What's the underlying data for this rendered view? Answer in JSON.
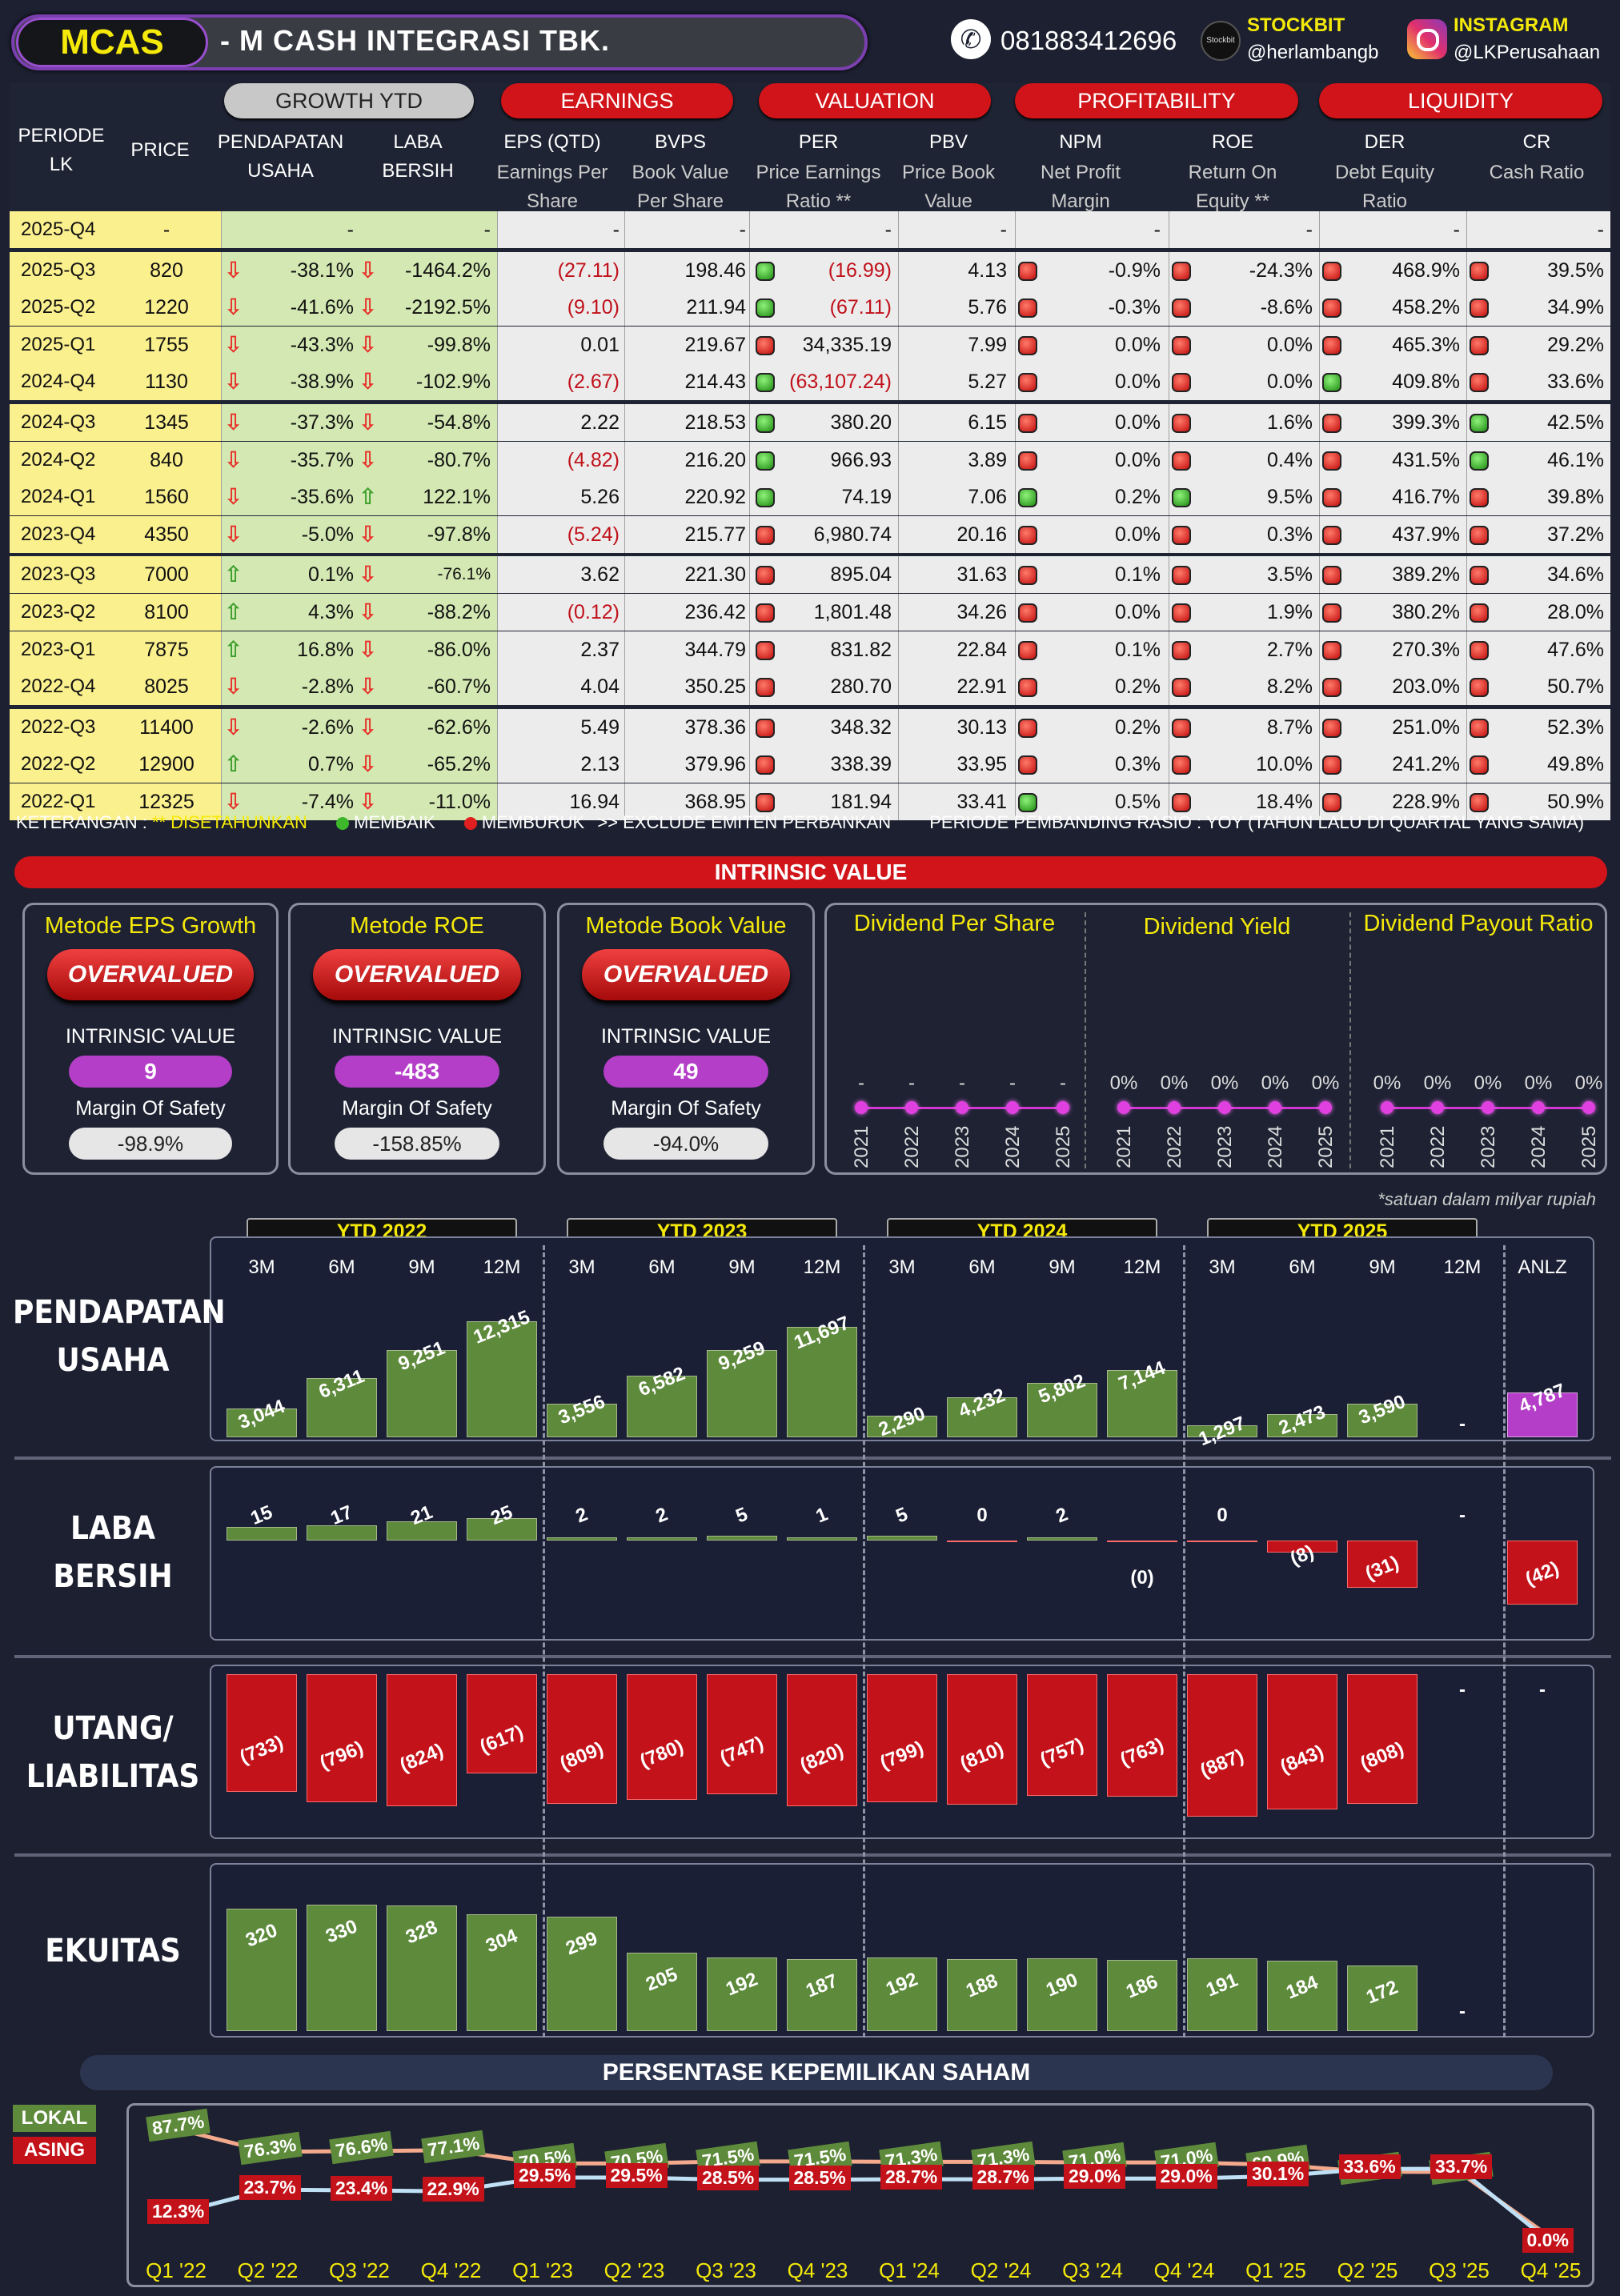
{
  "header": {
    "ticker": "MCAS",
    "company": "-  M CASH INTEGRASI TBK.",
    "phone": "081883412696",
    "stockbit_label": "STOCKBIT",
    "stockbit_handle": "@herlambangb",
    "instagram_label": "INSTAGRAM",
    "instagram_handle": "@LKPerusahaan"
  },
  "table": {
    "groups": {
      "growth": "GROWTH YTD",
      "earnings": "EARNINGS",
      "valuation": "VALUATION",
      "profitability": "PROFITABILITY",
      "liquidity": "LIQUIDITY"
    },
    "cols": {
      "periode": "PERIODE LK",
      "price": "PRICE",
      "pendapatan": "PENDAPATAN USAHA",
      "laba": "LABA BERSIH",
      "eps": "EPS (QTD)",
      "eps_sub": "Earnings Per Share",
      "bvps": "BVPS",
      "bvps_sub": "Book Value Per Share",
      "per": "PER",
      "per_sub": "Price Earnings Ratio **",
      "pbv": "PBV",
      "pbv_sub": "Price Book Value",
      "npm": "NPM",
      "npm_sub": "Net Profit Margin",
      "roe": "ROE",
      "roe_sub": "Return On Equity **",
      "der": "DER",
      "der_sub": "Debt Equity Ratio",
      "cr": "CR",
      "cr_sub": "Cash Ratio"
    },
    "rows": [
      {
        "p": "2025-Q4",
        "price": "-",
        "rev": "-",
        "rev_a": "",
        "np": "-",
        "np_a": "",
        "eps": "-",
        "bvps": "-",
        "per": "-",
        "per_d": "",
        "pbv": "-",
        "npm": "-",
        "npm_d": "",
        "roe": "-",
        "roe_d": "",
        "der": "-",
        "der_d": "",
        "cr": "-",
        "cr_d": "",
        "eps_red": false,
        "per_red": false
      },
      {
        "p": "2025-Q3",
        "price": "820",
        "rev": "-38.1%",
        "rev_a": "dn",
        "np": "-1464.2%",
        "np_a": "dn",
        "eps": "(27.11)",
        "bvps": "198.46",
        "per": "(16.99)",
        "per_d": "g",
        "pbv": "4.13",
        "npm": "-0.9%",
        "npm_d": "r",
        "roe": "-24.3%",
        "roe_d": "r",
        "der": "468.9%",
        "der_d": "r",
        "cr": "39.5%",
        "cr_d": "r",
        "eps_red": true,
        "per_red": true
      },
      {
        "p": "2025-Q2",
        "price": "1220",
        "rev": "-41.6%",
        "rev_a": "dn",
        "np": "-2192.5%",
        "np_a": "dn",
        "eps": "(9.10)",
        "bvps": "211.94",
        "per": "(67.11)",
        "per_d": "g",
        "pbv": "5.76",
        "npm": "-0.3%",
        "npm_d": "r",
        "roe": "-8.6%",
        "roe_d": "r",
        "der": "458.2%",
        "der_d": "r",
        "cr": "34.9%",
        "cr_d": "r",
        "eps_red": true,
        "per_red": true
      },
      {
        "p": "2025-Q1",
        "price": "1755",
        "rev": "-43.3%",
        "rev_a": "dn",
        "np": "-99.8%",
        "np_a": "dn",
        "eps": "0.01",
        "bvps": "219.67",
        "per": "34,335.19",
        "per_d": "r",
        "pbv": "7.99",
        "npm": "0.0%",
        "npm_d": "r",
        "roe": "0.0%",
        "roe_d": "r",
        "der": "465.3%",
        "der_d": "r",
        "cr": "29.2%",
        "cr_d": "r",
        "eps_red": false,
        "per_red": false
      },
      {
        "p": "2024-Q4",
        "price": "1130",
        "rev": "-38.9%",
        "rev_a": "dn",
        "np": "-102.9%",
        "np_a": "dn",
        "eps": "(2.67)",
        "bvps": "214.43",
        "per": "(63,107.24)",
        "per_d": "g",
        "pbv": "5.27",
        "npm": "0.0%",
        "npm_d": "r",
        "roe": "0.0%",
        "roe_d": "r",
        "der": "409.8%",
        "der_d": "g",
        "cr": "33.6%",
        "cr_d": "r",
        "eps_red": true,
        "per_red": true
      },
      {
        "p": "2024-Q3",
        "price": "1345",
        "rev": "-37.3%",
        "rev_a": "dn",
        "np": "-54.8%",
        "np_a": "dn",
        "eps": "2.22",
        "bvps": "218.53",
        "per": "380.20",
        "per_d": "g",
        "pbv": "6.15",
        "npm": "0.0%",
        "npm_d": "r",
        "roe": "1.6%",
        "roe_d": "r",
        "der": "399.3%",
        "der_d": "r",
        "cr": "42.5%",
        "cr_d": "g",
        "eps_red": false,
        "per_red": false
      },
      {
        "p": "2024-Q2",
        "price": "840",
        "rev": "-35.7%",
        "rev_a": "dn",
        "np": "-80.7%",
        "np_a": "dn",
        "eps": "(4.82)",
        "bvps": "216.20",
        "per": "966.93",
        "per_d": "g",
        "pbv": "3.89",
        "npm": "0.0%",
        "npm_d": "r",
        "roe": "0.4%",
        "roe_d": "r",
        "der": "431.5%",
        "der_d": "r",
        "cr": "46.1%",
        "cr_d": "g",
        "eps_red": true,
        "per_red": false
      },
      {
        "p": "2024-Q1",
        "price": "1560",
        "rev": "-35.6%",
        "rev_a": "dn",
        "np": "122.1%",
        "np_a": "up",
        "eps": "5.26",
        "bvps": "220.92",
        "per": "74.19",
        "per_d": "g",
        "pbv": "7.06",
        "npm": "0.2%",
        "npm_d": "g",
        "roe": "9.5%",
        "roe_d": "g",
        "der": "416.7%",
        "der_d": "r",
        "cr": "39.8%",
        "cr_d": "r",
        "eps_red": false,
        "per_red": false
      },
      {
        "p": "2023-Q4",
        "price": "4350",
        "rev": "-5.0%",
        "rev_a": "dn",
        "np": "-97.8%",
        "np_a": "dn",
        "eps": "(5.24)",
        "bvps": "215.77",
        "per": "6,980.74",
        "per_d": "r",
        "pbv": "20.16",
        "npm": "0.0%",
        "npm_d": "r",
        "roe": "0.3%",
        "roe_d": "r",
        "der": "437.9%",
        "der_d": "r",
        "cr": "37.2%",
        "cr_d": "r",
        "eps_red": true,
        "per_red": false
      },
      {
        "p": "2023-Q3",
        "price": "7000",
        "rev": "0.1%",
        "rev_a": "up",
        "np": "-76.1%",
        "np_a": "dn",
        "eps": "3.62",
        "bvps": "221.30",
        "per": "895.04",
        "per_d": "r",
        "pbv": "31.63",
        "npm": "0.1%",
        "npm_d": "r",
        "roe": "3.5%",
        "roe_d": "r",
        "der": "389.2%",
        "der_d": "r",
        "cr": "34.6%",
        "cr_d": "r",
        "eps_red": false,
        "per_red": false
      },
      {
        "p": "2023-Q2",
        "price": "8100",
        "rev": "4.3%",
        "rev_a": "up",
        "np": "-88.2%",
        "np_a": "dn",
        "eps": "(0.12)",
        "bvps": "236.42",
        "per": "1,801.48",
        "per_d": "r",
        "pbv": "34.26",
        "npm": "0.0%",
        "npm_d": "r",
        "roe": "1.9%",
        "roe_d": "r",
        "der": "380.2%",
        "der_d": "r",
        "cr": "28.0%",
        "cr_d": "r",
        "eps_red": true,
        "per_red": false
      },
      {
        "p": "2023-Q1",
        "price": "7875",
        "rev": "16.8%",
        "rev_a": "up",
        "np": "-86.0%",
        "np_a": "dn",
        "eps": "2.37",
        "bvps": "344.79",
        "per": "831.82",
        "per_d": "r",
        "pbv": "22.84",
        "npm": "0.1%",
        "npm_d": "r",
        "roe": "2.7%",
        "roe_d": "r",
        "der": "270.3%",
        "der_d": "r",
        "cr": "47.6%",
        "cr_d": "r",
        "eps_red": false,
        "per_red": false
      },
      {
        "p": "2022-Q4",
        "price": "8025",
        "rev": "-2.8%",
        "rev_a": "dn",
        "np": "-60.7%",
        "np_a": "dn",
        "eps": "4.04",
        "bvps": "350.25",
        "per": "280.70",
        "per_d": "r",
        "pbv": "22.91",
        "npm": "0.2%",
        "npm_d": "r",
        "roe": "8.2%",
        "roe_d": "r",
        "der": "203.0%",
        "der_d": "r",
        "cr": "50.7%",
        "cr_d": "r",
        "eps_red": false,
        "per_red": false
      },
      {
        "p": "2022-Q3",
        "price": "11400",
        "rev": "-2.6%",
        "rev_a": "dn",
        "np": "-62.6%",
        "np_a": "dn",
        "eps": "5.49",
        "bvps": "378.36",
        "per": "348.32",
        "per_d": "r",
        "pbv": "30.13",
        "npm": "0.2%",
        "npm_d": "r",
        "roe": "8.7%",
        "roe_d": "r",
        "der": "251.0%",
        "der_d": "r",
        "cr": "52.3%",
        "cr_d": "r",
        "eps_red": false,
        "per_red": false
      },
      {
        "p": "2022-Q2",
        "price": "12900",
        "rev": "0.7%",
        "rev_a": "up",
        "np": "-65.2%",
        "np_a": "dn",
        "eps": "2.13",
        "bvps": "379.96",
        "per": "338.39",
        "per_d": "r",
        "pbv": "33.95",
        "npm": "0.3%",
        "npm_d": "r",
        "roe": "10.0%",
        "roe_d": "r",
        "der": "241.2%",
        "der_d": "r",
        "cr": "49.8%",
        "cr_d": "r",
        "eps_red": false,
        "per_red": false
      },
      {
        "p": "2022-Q1",
        "price": "12325",
        "rev": "-7.4%",
        "rev_a": "dn",
        "np": "-11.0%",
        "np_a": "dn",
        "eps": "16.94",
        "bvps": "368.95",
        "per": "181.94",
        "per_d": "r",
        "pbv": "33.41",
        "npm": "0.5%",
        "npm_d": "g",
        "roe": "18.4%",
        "roe_d": "r",
        "der": "228.9%",
        "der_d": "r",
        "cr": "50.9%",
        "cr_d": "r",
        "eps_red": false,
        "per_red": false
      }
    ],
    "legend": {
      "ket": "KETERANGAN :",
      "ann": "** DISETAHUNKAN",
      "membaik": "MEMBAIK",
      "memburuk": "MEMBURUK",
      "exclude": ">> EXCLUDE EMITEN PERBANKAN",
      "periode": "PERIODE PEMBANDING RASIO : YOY (TAHUN LALU DI QUARTAL YANG SAMA)"
    }
  },
  "intrinsic": {
    "title": "INTRINSIC VALUE",
    "cards": [
      {
        "title": "Metode EPS Growth",
        "status": "OVERVALUED",
        "iv_label": "INTRINSIC VALUE",
        "iv": "9",
        "mos_label": "Margin Of Safety",
        "mos": "-98.9%"
      },
      {
        "title": "Metode ROE",
        "status": "OVERVALUED",
        "iv_label": "INTRINSIC VALUE",
        "iv": "-483",
        "mos_label": "Margin Of Safety",
        "mos": "-158.85%"
      },
      {
        "title": "Metode Book Value",
        "status": "OVERVALUED",
        "iv_label": "INTRINSIC VALUE",
        "iv": "49",
        "mos_label": "Margin Of Safety",
        "mos": "-94.0%"
      }
    ],
    "dividend": {
      "dps_title": "Dividend Per Share",
      "dy_title": "Dividend Yield",
      "dpr_title": "Dividend Payout Ratio",
      "years": [
        "2021",
        "2022",
        "2023",
        "2024",
        "2025"
      ],
      "dps": [
        "-",
        "-",
        "-",
        "-",
        "-"
      ],
      "dy": [
        "0%",
        "0%",
        "0%",
        "0%",
        "0%"
      ],
      "dpr": [
        "0%",
        "0%",
        "0%",
        "0%",
        "0%"
      ]
    }
  },
  "note": "*satuan dalam milyar rupiah",
  "bars": {
    "ytd": [
      "YTD 2022",
      "YTD 2023",
      "YTD 2024",
      "YTD 2025"
    ],
    "periods": [
      "3M",
      "6M",
      "9M",
      "12M",
      "3M",
      "6M",
      "9M",
      "12M",
      "3M",
      "6M",
      "9M",
      "12M",
      "3M",
      "6M",
      "9M",
      "12M",
      "ANLZ"
    ],
    "pendapatan": {
      "label": "PENDAPATAN USAHA",
      "values": [
        3044,
        6311,
        9251,
        12315,
        3556,
        6582,
        9259,
        11697,
        2290,
        4232,
        5802,
        7144,
        1297,
        2473,
        3590,
        null,
        4787
      ],
      "labels": [
        "3,044",
        "6,311",
        "9,251",
        "12,315",
        "3,556",
        "6,582",
        "9,259",
        "11,697",
        "2,290",
        "4,232",
        "5,802",
        "7,144",
        "1,297",
        "2,473",
        "3,590",
        "-",
        "4,787"
      ]
    },
    "laba": {
      "label": "LABA BERSIH",
      "values": [
        15,
        17,
        21,
        25,
        2,
        2,
        5,
        1,
        5,
        0,
        2,
        0,
        0,
        -8,
        -31,
        null,
        -42
      ],
      "labels": [
        "15",
        "17",
        "21",
        "25",
        "2",
        "2",
        "5",
        "1",
        "5",
        "0",
        "2",
        "(0)",
        "0",
        "(8)",
        "(31)",
        "-",
        "(42)"
      ]
    },
    "utang": {
      "label": "UTANG/ LIABILITAS",
      "values": [
        -733,
        -796,
        -824,
        -617,
        -809,
        -780,
        -747,
        -820,
        -799,
        -810,
        -757,
        -763,
        -887,
        -843,
        -808,
        null,
        null
      ],
      "labels": [
        "(733)",
        "(796)",
        "(824)",
        "(617)",
        "(809)",
        "(780)",
        "(747)",
        "(820)",
        "(799)",
        "(810)",
        "(757)",
        "(763)",
        "(887)",
        "(843)",
        "(808)",
        "-",
        "-"
      ]
    },
    "ekuitas": {
      "label": "EKUITAS",
      "values": [
        320,
        330,
        328,
        304,
        299,
        205,
        192,
        187,
        192,
        188,
        190,
        186,
        191,
        184,
        172,
        null,
        null
      ],
      "labels": [
        "320",
        "330",
        "328",
        "304",
        "299",
        "205",
        "192",
        "187",
        "192",
        "188",
        "190",
        "186",
        "191",
        "184",
        "172",
        "-",
        ""
      ]
    }
  },
  "ownership": {
    "title": "PERSENTASE KEPEMILIKAN SAHAM",
    "lokal_label": "LOKAL",
    "asing_label": "ASING",
    "quarters": [
      "Q1 '22",
      "Q2 '22",
      "Q3 '22",
      "Q4 '22",
      "Q1 '23",
      "Q2 '23",
      "Q3 '23",
      "Q4 '23",
      "Q1 '24",
      "Q2 '24",
      "Q3 '24",
      "Q4 '24",
      "Q1 '25",
      "Q2 '25",
      "Q3 '25",
      "Q4 '25"
    ],
    "lokal": [
      87.7,
      76.3,
      76.6,
      77.1,
      70.5,
      70.5,
      71.5,
      71.5,
      71.3,
      71.3,
      71.0,
      71.0,
      69.9,
      66.4,
      66.3,
      0
    ],
    "asing": [
      12.3,
      23.7,
      23.4,
      22.9,
      29.5,
      29.5,
      28.5,
      28.5,
      28.7,
      28.7,
      29.0,
      29.0,
      30.1,
      33.6,
      33.7,
      0.0
    ],
    "lokal_labels": [
      "87.7%",
      "76.3%",
      "76.6%",
      "77.1%",
      "70.5%",
      "70.5%",
      "71.5%",
      "71.5%",
      "71.3%",
      "71.3%",
      "71.0%",
      "71.0%",
      "69.9%",
      "66.4%",
      "66.3%",
      ""
    ],
    "asing_labels": [
      "12.3%",
      "23.7%",
      "23.4%",
      "22.9%",
      "29.5%",
      "29.5%",
      "28.5%",
      "28.5%",
      "28.7%",
      "28.7%",
      "29.0%",
      "29.0%",
      "30.1%",
      "33.6%",
      "33.7%",
      "0.0%"
    ]
  }
}
